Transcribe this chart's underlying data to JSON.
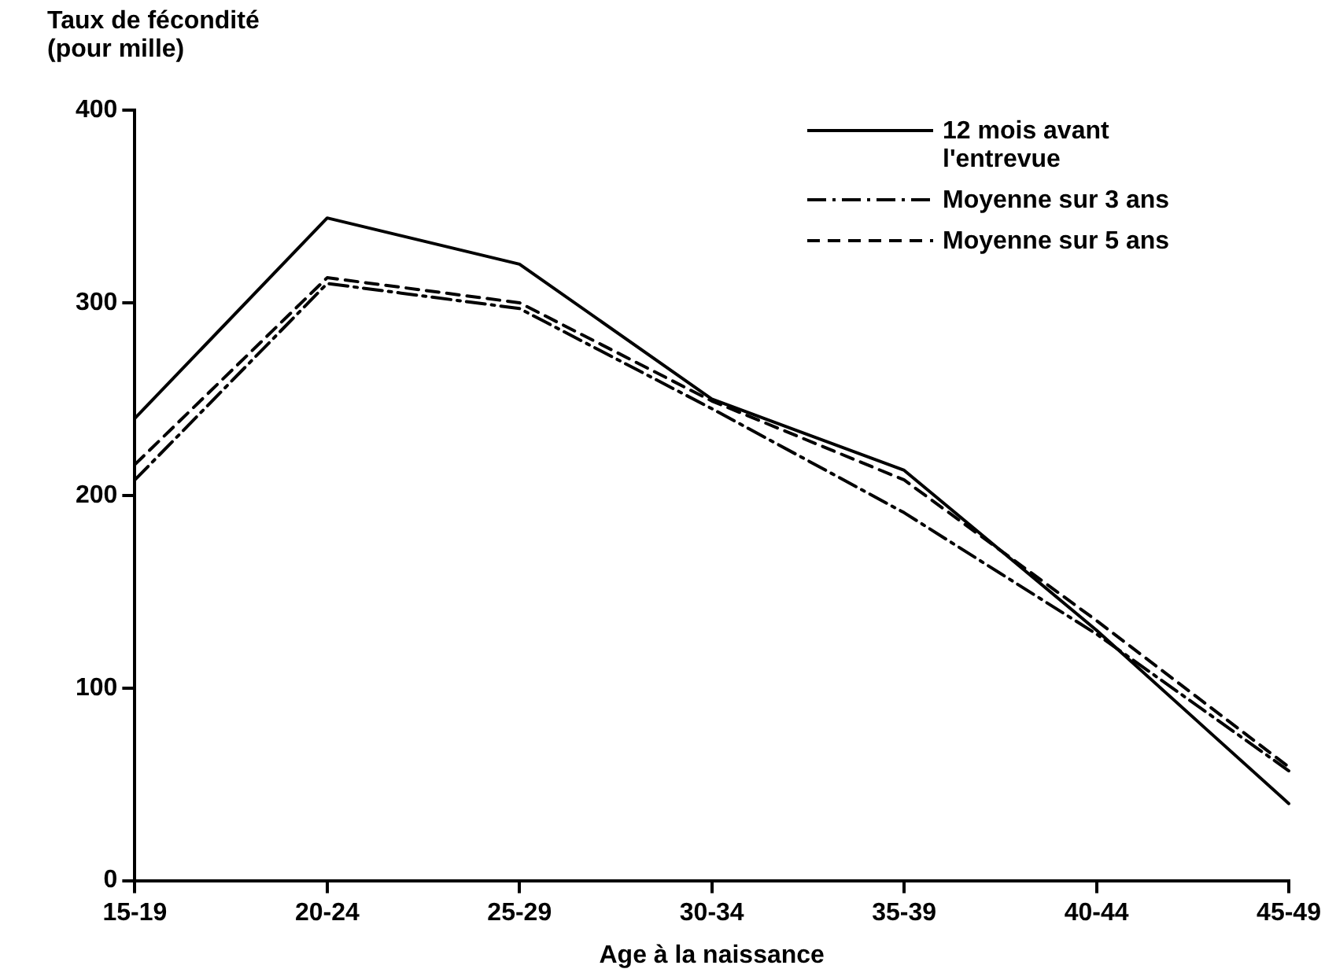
{
  "chart_data": {
    "type": "line",
    "ylabel": "Taux de fécondité (pour mille)",
    "xlabel": "Age à la naissance",
    "categories": [
      "15-19",
      "20-24",
      "25-29",
      "30-34",
      "35-39",
      "40-44",
      "45-49"
    ],
    "series": [
      {
        "name": "12 mois avant l'entrevue",
        "color": "#000000",
        "line_style": "solid",
        "values": [
          240,
          344,
          320,
          250,
          213,
          130,
          40
        ]
      },
      {
        "name": "Moyenne sur 3 ans",
        "color": "#000000",
        "line_style": "dashdot",
        "values": [
          208,
          310,
          297,
          245,
          191,
          128,
          57
        ]
      },
      {
        "name": "Moyenne sur 5 ans",
        "color": "#000000",
        "line_style": "dashed",
        "values": [
          216,
          313,
          300,
          249,
          208,
          135,
          59
        ]
      }
    ],
    "ylim": [
      0,
      400
    ],
    "yticks": [
      0,
      100,
      200,
      300,
      400
    ],
    "grid": false,
    "legend": "top right",
    "marker": "none"
  }
}
